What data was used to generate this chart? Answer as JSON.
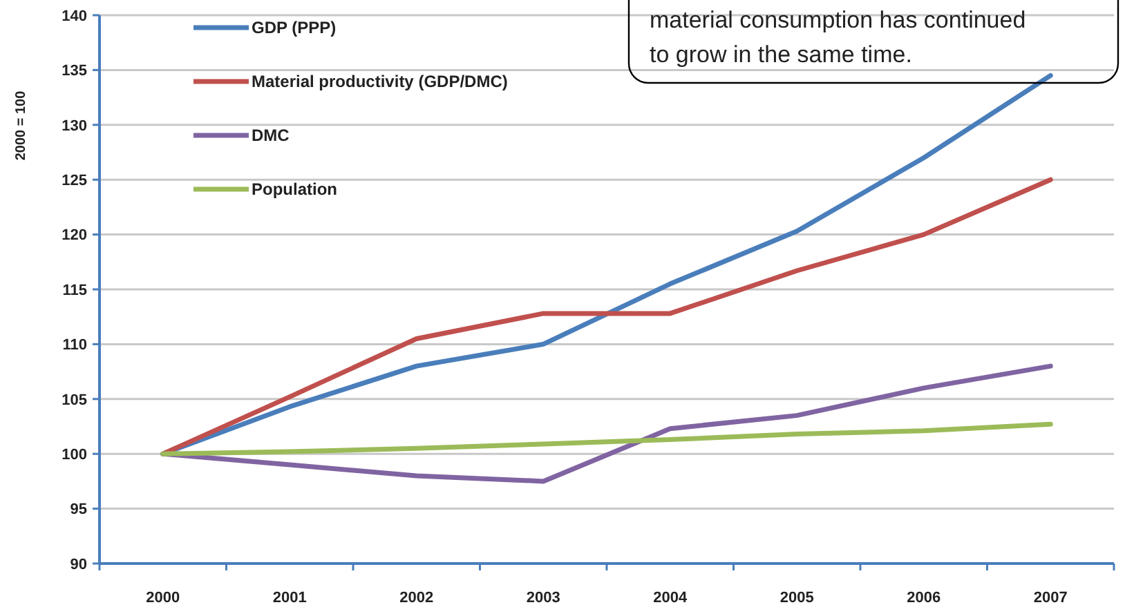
{
  "chart_data": {
    "type": "line",
    "ylabel": "2000 = 100",
    "categories": [
      "2000",
      "2001",
      "2002",
      "2003",
      "2004",
      "2005",
      "2006",
      "2007"
    ],
    "series": [
      {
        "name": "GDP (PPP)",
        "color": "#4a7ebb",
        "values": [
          100,
          104.3,
          108,
          110,
          115.5,
          120.3,
          127,
          134.5
        ]
      },
      {
        "name": "Material productivity (GDP/DMC)",
        "color": "#c0504d",
        "values": [
          100,
          105.2,
          110.5,
          112.8,
          112.8,
          116.7,
          120,
          125
        ]
      },
      {
        "name": "DMC",
        "color": "#8064a2",
        "values": [
          100,
          99,
          98,
          97.5,
          102.3,
          103.5,
          106,
          108
        ]
      },
      {
        "name": "Population",
        "color": "#9bbb59",
        "values": [
          100,
          100.2,
          100.5,
          100.9,
          101.3,
          101.8,
          102.1,
          102.7
        ]
      }
    ],
    "ylim": [
      90,
      140
    ],
    "yticks": [
      90,
      95,
      100,
      105,
      110,
      115,
      120,
      125,
      130,
      135,
      140
    ],
    "grid": "y",
    "legend": "top left",
    "marker": "none",
    "line_style": "solid",
    "annotations": [
      "material consumption has continued to grow in the same time."
    ]
  }
}
